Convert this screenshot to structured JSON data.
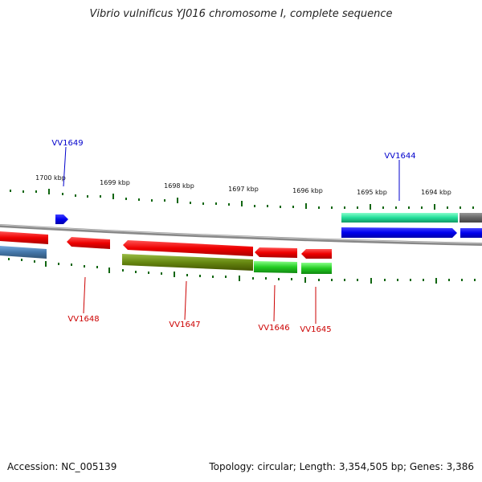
{
  "title": "Vibrio vulnificus YJ016 chromosome I, complete sequence",
  "footer": {
    "accession": "Accession: NC_005139",
    "topology": "Topology: circular; Length: 3,354,505 bp; Genes: 3,386"
  },
  "kbp_labels": [
    "1700 kbp",
    "1699 kbp",
    "1698 kbp",
    "1697 kbp",
    "1696 kbp",
    "1695 kbp",
    "1694 kbp"
  ],
  "gene_labels": {
    "top": [
      "VV1649",
      "VV1644"
    ],
    "bottom": [
      "VV1648",
      "VV1647",
      "VV1646",
      "VV1645"
    ]
  },
  "colors": {
    "forward_strand_label": "#0000cc",
    "reverse_strand_label": "#cc0000",
    "red_gene": "#ee0000",
    "blue_gene": "#0000ee",
    "teal_gene": "#22dd99",
    "green_gene": "#22cc22",
    "olive_gene": "#668811",
    "steel_gene": "#4477aa",
    "gray_gene": "#666666",
    "tick": "#116611",
    "backbone": "#888888"
  }
}
